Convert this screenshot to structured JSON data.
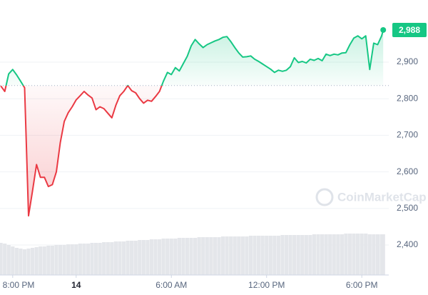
{
  "chart_data": {
    "type": "line",
    "x": [
      -0.75,
      -0.5,
      -0.25,
      0,
      0.25,
      0.5,
      0.75,
      1,
      1.25,
      1.5,
      1.75,
      2,
      2.25,
      2.5,
      2.75,
      3,
      3.25,
      3.5,
      3.75,
      4,
      4.25,
      4.5,
      4.75,
      5,
      5.25,
      5.5,
      5.75,
      6,
      6.25,
      6.5,
      6.75,
      7,
      7.25,
      7.5,
      7.75,
      8,
      8.25,
      8.5,
      8.75,
      9,
      9.25,
      9.5,
      9.75,
      10,
      10.25,
      10.5,
      10.75,
      11,
      11.25,
      11.5,
      11.75,
      12,
      12.25,
      12.5,
      12.75,
      13,
      13.25,
      13.5,
      13.75,
      14,
      14.25,
      14.5,
      14.75,
      15,
      15.25,
      15.5,
      15.75,
      16,
      16.25,
      16.5,
      16.75,
      17,
      17.25,
      17.5,
      17.75,
      18,
      18.25,
      18.5,
      18.75,
      19,
      19.25,
      19.5,
      19.75,
      20,
      20.25,
      20.5,
      20.75,
      21,
      21.25,
      21.5,
      21.75,
      22,
      22.25,
      22.5,
      22.75,
      23,
      23.25,
      23.35
    ],
    "series": [
      {
        "name": "Price",
        "color_up": "#16c784",
        "color_down": "#ea3943",
        "values": [
          2835,
          2820,
          2868,
          2880,
          2865,
          2848,
          2830,
          2480,
          2548,
          2620,
          2585,
          2585,
          2560,
          2565,
          2600,
          2680,
          2738,
          2762,
          2778,
          2797,
          2808,
          2820,
          2810,
          2802,
          2770,
          2778,
          2773,
          2760,
          2748,
          2782,
          2808,
          2820,
          2836,
          2822,
          2816,
          2800,
          2788,
          2796,
          2793,
          2806,
          2820,
          2848,
          2872,
          2866,
          2885,
          2876,
          2896,
          2916,
          2945,
          2962,
          2950,
          2940,
          2948,
          2953,
          2958,
          2962,
          2968,
          2970,
          2956,
          2940,
          2925,
          2914,
          2915,
          2917,
          2908,
          2902,
          2895,
          2888,
          2881,
          2872,
          2878,
          2875,
          2878,
          2888,
          2912,
          2899,
          2902,
          2898,
          2908,
          2905,
          2910,
          2904,
          2922,
          2918,
          2922,
          2920,
          2925,
          2926,
          2948,
          2966,
          2972,
          2964,
          2972,
          2880,
          2952,
          2948,
          2972,
          2988
        ]
      }
    ],
    "volume": {
      "color": "#e4e6ea",
      "values": [
        45,
        44,
        42,
        40,
        38,
        37,
        36,
        37,
        38,
        39,
        40,
        40,
        41,
        41,
        42,
        42,
        42,
        43,
        43,
        43,
        44,
        44,
        44,
        45,
        45,
        45,
        46,
        46,
        46,
        47,
        47,
        47,
        48,
        48,
        48,
        49,
        49,
        49,
        50,
        50,
        50,
        51,
        51,
        51,
        51,
        52,
        52,
        52,
        52,
        52,
        53,
        53,
        53,
        53,
        53,
        53,
        54,
        54,
        54,
        54,
        54,
        54,
        54,
        55,
        55,
        55,
        55,
        55,
        55,
        55,
        55,
        56,
        56,
        56,
        56,
        56,
        56,
        56,
        56,
        57,
        57,
        57,
        57,
        57,
        57,
        57,
        57,
        58,
        58,
        58,
        58,
        58,
        58,
        57,
        57,
        57,
        57,
        57
      ],
      "vlim": [
        0,
        100
      ]
    },
    "baseline": 2836,
    "current_price": {
      "value": 2988,
      "label": "2,988"
    },
    "xlim": [
      -0.8,
      23.7
    ],
    "xticks": [
      {
        "value": 0,
        "label": "8:00 PM"
      },
      {
        "value": 4,
        "label": "14"
      },
      {
        "value": 10,
        "label": "6:00 AM"
      },
      {
        "value": 16,
        "label": "12:00 PM"
      },
      {
        "value": 22,
        "label": "6:00 PM"
      }
    ],
    "ylim": [
      2318,
      3070
    ],
    "yticks": [
      {
        "value": 2400,
        "label": "2,400"
      },
      {
        "value": 2500,
        "label": "2,500"
      },
      {
        "value": 2600,
        "label": "2,600"
      },
      {
        "value": 2700,
        "label": "2,700"
      },
      {
        "value": 2800,
        "label": "2,800"
      },
      {
        "value": 2900,
        "label": "2,900"
      }
    ],
    "grid": true,
    "watermark": "CoinMarketCap"
  }
}
